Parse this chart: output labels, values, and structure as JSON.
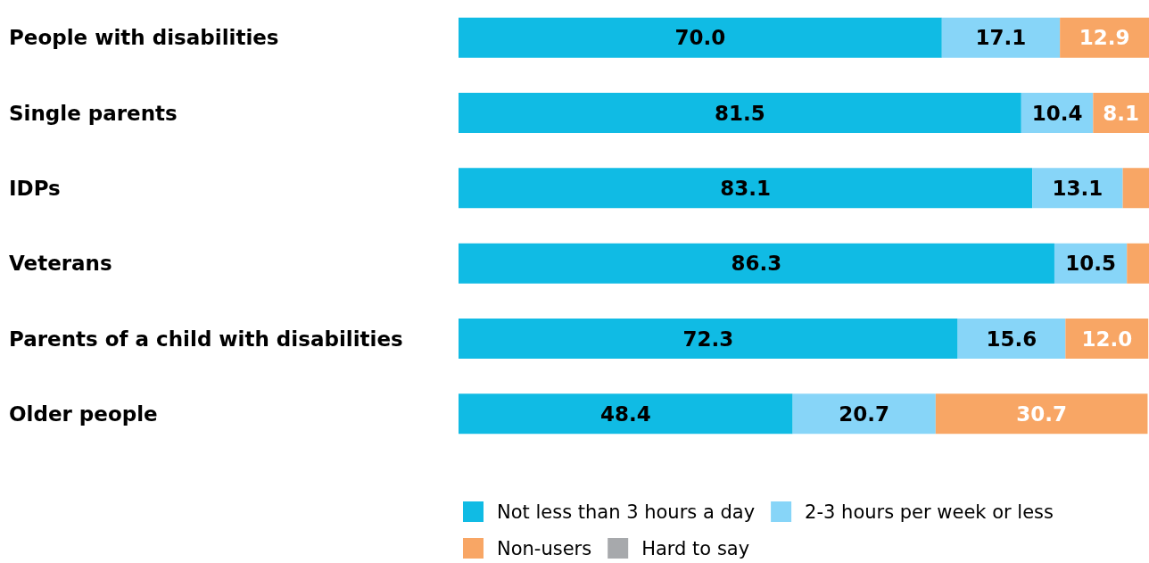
{
  "chart_data": {
    "type": "bar",
    "orientation": "horizontal",
    "stacked": true,
    "categories": [
      "People with disabilities",
      "Single parents",
      "IDPs",
      "Veterans",
      "Parents of a child with disabilities",
      "Older people"
    ],
    "series": [
      {
        "name": "Not less than 3 hours a day",
        "color": "#10bbe4",
        "values": [
          70.0,
          81.5,
          83.1,
          86.3,
          72.3,
          48.4
        ],
        "value_labels": [
          "70.0",
          "81.5",
          "83.1",
          "86.3",
          "72.3",
          "48.4"
        ]
      },
      {
        "name": "2-3 hours per week or less",
        "color": "#87d5f8",
        "values": [
          17.1,
          10.4,
          13.1,
          10.5,
          15.6,
          20.7
        ],
        "value_labels": [
          "17.1",
          "10.4",
          "13.1",
          "10.5",
          "15.6",
          "20.7"
        ]
      },
      {
        "name": "Non-users",
        "color": "#f8a665",
        "values": [
          12.9,
          8.1,
          3.8,
          3.2,
          12.0,
          30.7
        ],
        "value_labels": [
          "12.9",
          "8.1",
          null,
          null,
          "12.0",
          "30.7"
        ]
      },
      {
        "name": "Hard to say",
        "color": "#a7a9ac",
        "values": [
          null,
          null,
          null,
          null,
          null,
          null
        ]
      }
    ],
    "xlim": [
      0,
      100
    ],
    "tick_labels": "y",
    "legend": "bottom"
  }
}
